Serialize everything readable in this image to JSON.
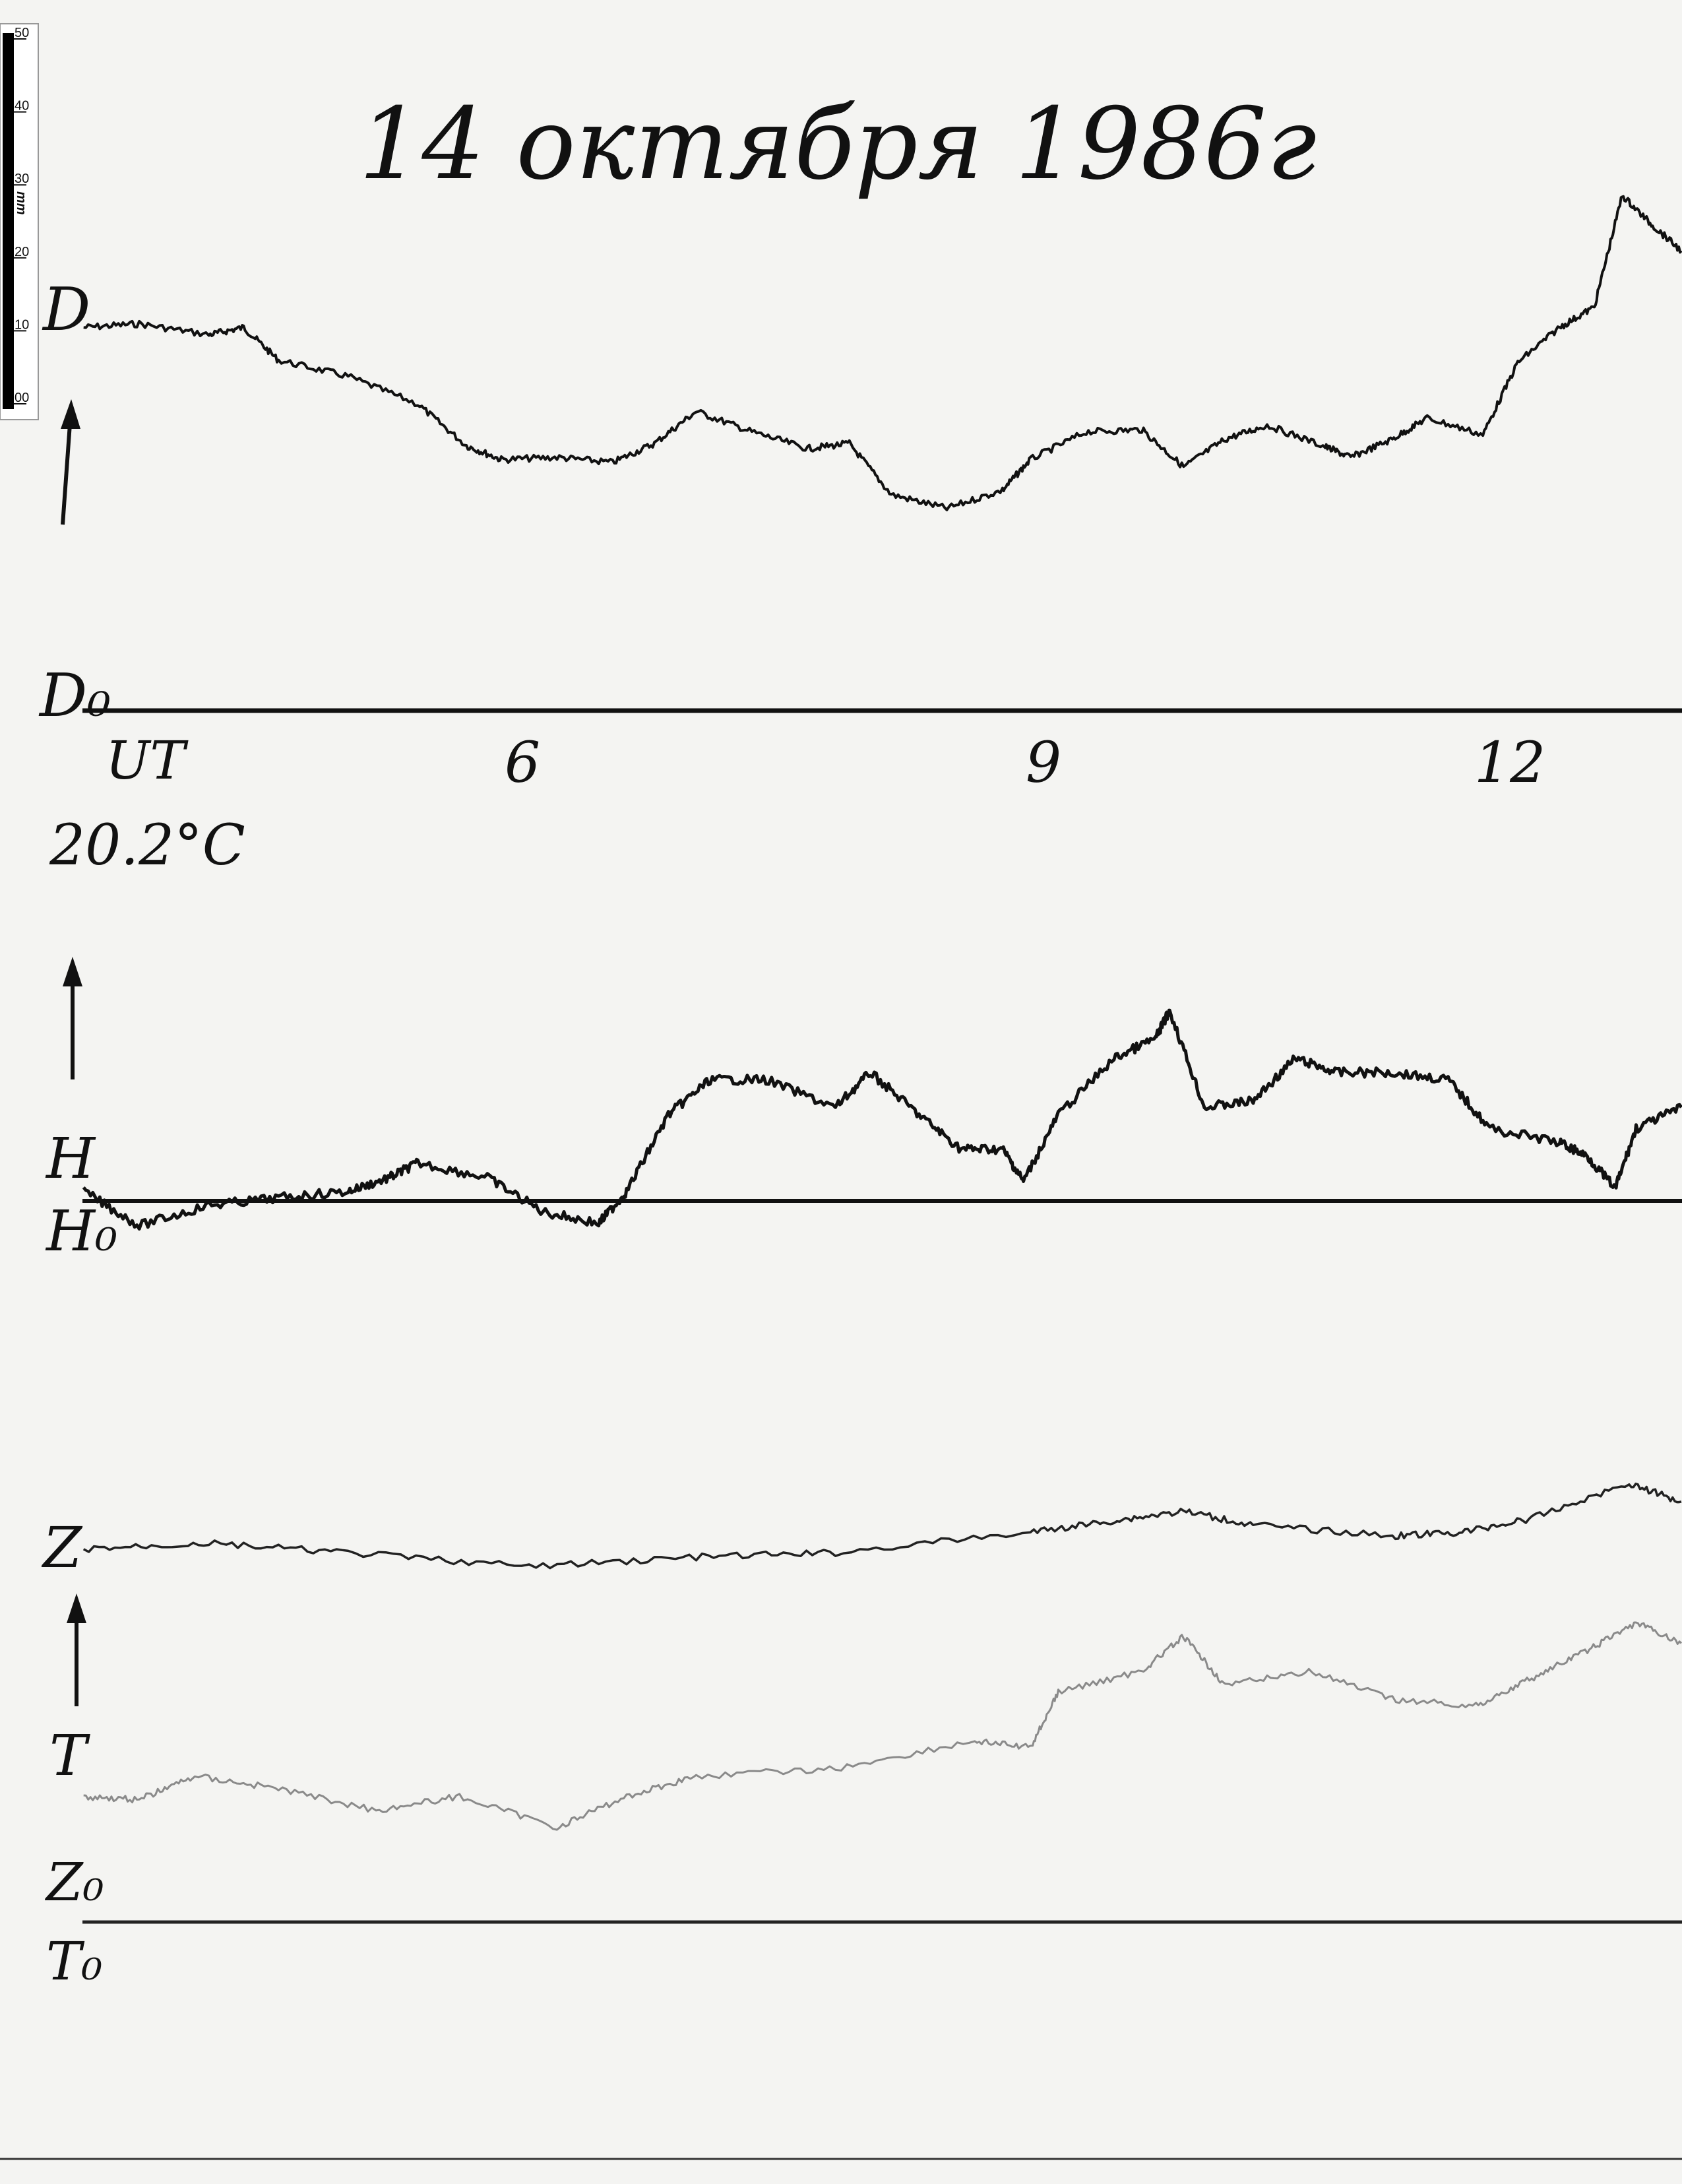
{
  "title": "14 октября 1986г",
  "scale_ruler": {
    "unit": "mm",
    "ticks": [
      "50",
      "40",
      "30",
      "20",
      "10",
      "00"
    ]
  },
  "labels": {
    "time_label": "UT",
    "temperature": "20.2°C",
    "D": "D",
    "D0": "D₀",
    "H": "H",
    "H0": "H₀",
    "Z": "Z",
    "T": "T",
    "Z0": "Z₀",
    "T0": "T₀"
  },
  "colors": {
    "paper": "#f4f4f2",
    "ink": "#111111",
    "T_trace": "#8a8a8a"
  },
  "chart_data": {
    "type": "line",
    "title": "14 октября 1986г",
    "xlabel": "UT",
    "x_ticks": [
      "6",
      "9",
      "12"
    ],
    "x_tick_values": [
      6,
      9,
      12
    ],
    "xlim": [
      3.52,
      12.7
    ],
    "y_unit": "mm above baseline",
    "grid": false,
    "series": [
      {
        "name": "D",
        "x": [
          3.52,
          3.84,
          4.24,
          4.44,
          4.64,
          5.04,
          5.44,
          5.72,
          5.92,
          6.24,
          6.56,
          6.8,
          7.04,
          7.36,
          7.68,
          7.92,
          8.16,
          8.48,
          8.8,
          8.96,
          9.28,
          9.6,
          9.84,
          10.08,
          10.32,
          10.64,
          10.8,
          11.04,
          11.24,
          11.56,
          11.76,
          12.0,
          12.2,
          12.36,
          12.52,
          12.7
        ],
        "y": [
          52.5,
          53,
          51.5,
          52.5,
          48,
          45.8,
          42,
          36.3,
          34.4,
          34.7,
          34,
          36.6,
          41,
          38.2,
          35.9,
          36.6,
          29.6,
          27.7,
          30.2,
          34.4,
          38.2,
          38.5,
          33.4,
          37.2,
          39.1,
          36.3,
          34.7,
          37.2,
          40.1,
          37.8,
          47.7,
          52.5,
          55.3,
          70.6,
          66.8,
          63
        ]
      },
      {
        "name": "H",
        "x": [
          3.52,
          3.84,
          4.24,
          4.64,
          5.04,
          5.28,
          5.44,
          5.84,
          6.16,
          6.48,
          6.64,
          6.88,
          7.12,
          7.44,
          7.84,
          8.04,
          8.32,
          8.56,
          8.8,
          8.92,
          9.12,
          9.44,
          9.68,
          9.76,
          9.96,
          10.24,
          10.48,
          10.72,
          11.04,
          11.36,
          11.6,
          12.0,
          12.16,
          12.32,
          12.44,
          12.7
        ],
        "y": [
          1.3,
          -3.4,
          -0.6,
          0.4,
          1.3,
          3.2,
          5.2,
          3.2,
          -1.5,
          -3.1,
          1.3,
          11.8,
          16.6,
          16.6,
          12.8,
          17.6,
          11.8,
          7.1,
          7.1,
          2.7,
          11.8,
          19.5,
          22.3,
          26.1,
          12.8,
          13.7,
          19.5,
          17.6,
          17.6,
          16.6,
          9.9,
          8,
          6.1,
          1.7,
          9.9,
          12.8
        ]
      },
      {
        "name": "Z",
        "x": [
          3.52,
          4.24,
          5.04,
          6.08,
          7.04,
          7.84,
          8.96,
          9.44,
          9.84,
          10.24,
          11.04,
          11.44,
          11.84,
          12.4,
          12.7
        ],
        "y": [
          51.1,
          51.9,
          50.6,
          48.7,
          50,
          50.6,
          53.4,
          55,
          56.3,
          54.4,
          52.9,
          53.4,
          55.3,
          60.1,
          57.6
        ]
      },
      {
        "name": "T",
        "x": [
          3.52,
          3.84,
          4.16,
          4.64,
          5.2,
          5.68,
          6.24,
          6.64,
          7.04,
          7.84,
          8.64,
          8.96,
          9.12,
          9.6,
          9.84,
          10.08,
          10.56,
          11.04,
          11.52,
          11.84,
          12.16,
          12.44,
          12.7
        ],
        "y": [
          17.2,
          16.8,
          20,
          18.3,
          15.3,
          17.2,
          13,
          17.2,
          20,
          21,
          24.8,
          23.9,
          31.5,
          34.4,
          39.1,
          32.4,
          34.4,
          30.5,
          29.6,
          33.4,
          37.2,
          41,
          38.2
        ]
      }
    ]
  }
}
